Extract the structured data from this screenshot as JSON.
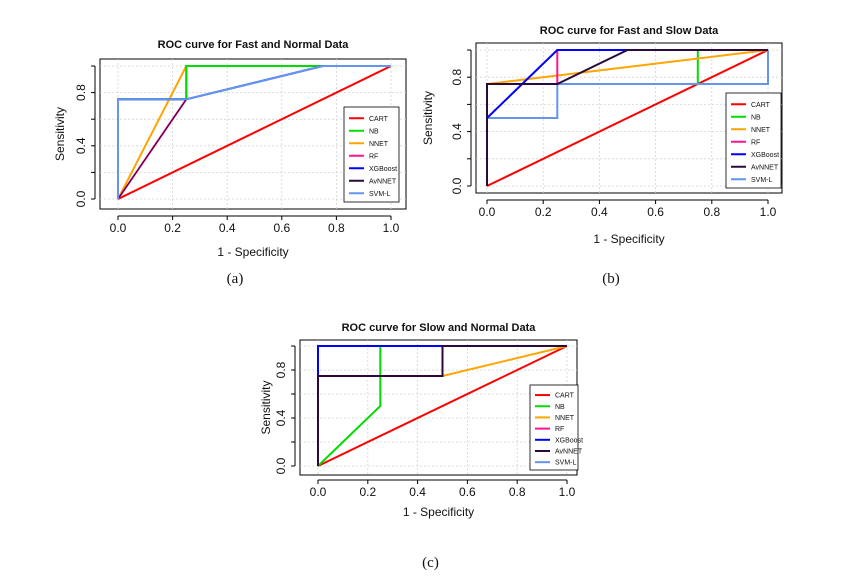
{
  "colors": {
    "CART": "#ff0000",
    "NB": "#00dd00",
    "NNET": "#ffa500",
    "RF": "#ff1493",
    "XGBoost": "#0000ff",
    "AvNNET": "#2a0a3a",
    "SVM-L": "#6495ed"
  },
  "chart_data": [
    {
      "type": "line",
      "title": "ROC curve for Fast and Normal Data",
      "xlabel": "1 - Specificity",
      "ylabel": "Sensitivity",
      "caption": "(a)",
      "xlim": [
        0,
        1
      ],
      "ylim": [
        0,
        1
      ],
      "xticks": [
        "0.0",
        "0.2",
        "0.4",
        "0.6",
        "0.8",
        "1.0"
      ],
      "yticks": [
        "0.0",
        "0.4",
        "0.8"
      ],
      "grid": true,
      "legend_position": "bottom-right",
      "series": [
        {
          "name": "CART",
          "x": [
            0,
            1
          ],
          "y": [
            0,
            1
          ]
        },
        {
          "name": "NNET",
          "x": [
            0,
            0.25,
            1
          ],
          "y": [
            0,
            1,
            1
          ]
        },
        {
          "name": "RF",
          "x": [
            0,
            0.25,
            0.25,
            1
          ],
          "y": [
            0,
            0.75,
            1,
            1
          ]
        },
        {
          "name": "AvNNET",
          "x": [
            0,
            0.25,
            0.25,
            1
          ],
          "y": [
            0,
            0.75,
            1,
            1
          ]
        },
        {
          "name": "NB",
          "x": [
            0,
            0,
            0.25,
            0.25,
            1
          ],
          "y": [
            0,
            0.75,
            0.75,
            1,
            1
          ]
        },
        {
          "name": "XGBoost",
          "x": [
            0,
            0,
            0.25,
            0.75,
            1
          ],
          "y": [
            0,
            0.75,
            0.75,
            1,
            1
          ]
        },
        {
          "name": "SVM-L",
          "x": [
            0,
            0,
            0.25,
            0.75,
            1
          ],
          "y": [
            0,
            0.75,
            0.75,
            1,
            1
          ]
        }
      ],
      "legend": [
        "CART",
        "NB",
        "NNET",
        "RF",
        "XGBoost",
        "AvNNET",
        "SVM-L"
      ]
    },
    {
      "type": "line",
      "title": "ROC curve for Fast and Slow Data",
      "xlabel": "1 - Specificity",
      "ylabel": "Sensitivity",
      "caption": "(b)",
      "xlim": [
        0,
        1
      ],
      "ylim": [
        0,
        1
      ],
      "xticks": [
        "0.0",
        "0.2",
        "0.4",
        "0.6",
        "0.8",
        "1.0"
      ],
      "yticks": [
        "0.0",
        "0.4",
        "0.8"
      ],
      "grid": true,
      "legend_position": "bottom-right",
      "series": [
        {
          "name": "CART",
          "x": [
            0,
            1
          ],
          "y": [
            0,
            1
          ]
        },
        {
          "name": "NB",
          "x": [
            0,
            0,
            0.75,
            0.75,
            1
          ],
          "y": [
            0,
            0.75,
            0.75,
            1,
            1
          ]
        },
        {
          "name": "NNET",
          "x": [
            0,
            0,
            1
          ],
          "y": [
            0,
            0.75,
            1
          ]
        },
        {
          "name": "RF",
          "x": [
            0,
            0,
            0.25,
            0.25,
            1
          ],
          "y": [
            0,
            0.75,
            0.75,
            1,
            1
          ]
        },
        {
          "name": "SVM-L",
          "x": [
            0,
            0,
            0.25,
            0.25,
            1,
            1
          ],
          "y": [
            0,
            0.5,
            0.5,
            0.75,
            0.75,
            1
          ]
        },
        {
          "name": "XGBoost",
          "x": [
            0,
            0,
            0.25,
            1
          ],
          "y": [
            0,
            0.5,
            1,
            1
          ]
        },
        {
          "name": "AvNNET",
          "x": [
            0,
            0,
            0.25,
            0.5,
            1
          ],
          "y": [
            0,
            0.75,
            0.75,
            1,
            1
          ]
        }
      ],
      "legend": [
        "CART",
        "NB",
        "NNET",
        "RF",
        "XGBoost",
        "AvNNET",
        "SVM-L"
      ]
    },
    {
      "type": "line",
      "title": "ROC curve for Slow and Normal Data",
      "xlabel": "1 - Specificity",
      "ylabel": "Sensitivity",
      "caption": "(c)",
      "xlim": [
        0,
        1
      ],
      "ylim": [
        0,
        1
      ],
      "xticks": [
        "0.0",
        "0.2",
        "0.4",
        "0.6",
        "0.8",
        "1.0"
      ],
      "yticks": [
        "0.0",
        "0.4",
        "0.8"
      ],
      "grid": true,
      "legend_position": "bottom-right",
      "series": [
        {
          "name": "CART",
          "x": [
            0,
            1
          ],
          "y": [
            0,
            1
          ]
        },
        {
          "name": "NB",
          "x": [
            0,
            0.25,
            0.25,
            1
          ],
          "y": [
            0,
            0.5,
            1,
            1
          ]
        },
        {
          "name": "NNET",
          "x": [
            0,
            0,
            0.5,
            1
          ],
          "y": [
            0,
            0.75,
            0.75,
            1
          ]
        },
        {
          "name": "RF",
          "x": [
            0,
            0,
            1
          ],
          "y": [
            0,
            1,
            1
          ]
        },
        {
          "name": "SVM-L",
          "x": [
            0,
            0,
            1
          ],
          "y": [
            0,
            1,
            1
          ]
        },
        {
          "name": "XGBoost",
          "x": [
            0,
            0,
            1
          ],
          "y": [
            0,
            1,
            1
          ]
        },
        {
          "name": "AvNNET",
          "x": [
            0,
            0,
            0.5,
            0.5,
            1
          ],
          "y": [
            0,
            0.75,
            0.75,
            1,
            1
          ]
        }
      ],
      "legend": [
        "CART",
        "NB",
        "NNET",
        "RF",
        "XGBoost",
        "AvNNET",
        "SVM-L"
      ]
    }
  ]
}
